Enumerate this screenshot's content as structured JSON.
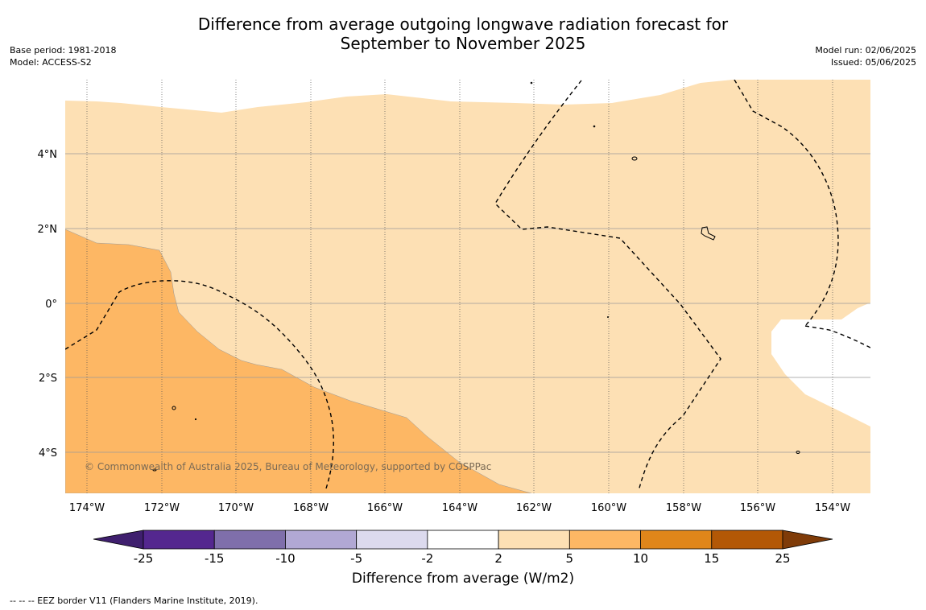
{
  "title": "Difference from average outgoing longwave radiation forecast for\nSeptember to November 2025",
  "base_period": "Base period: 1981-2018",
  "model": "Model: ACCESS-S2",
  "model_run": "Model run: 02/06/2025",
  "issued": "Issued: 05/06/2025",
  "copyright": "© Commonwealth of Australia 2025, Bureau of Meteorology, supported by COSPPac",
  "lat_labels": [
    "4°N",
    "2°N",
    "0°",
    "2°S",
    "4°S"
  ],
  "lon_labels": [
    "174°W",
    "172°W",
    "170°W",
    "168°W",
    "166°W",
    "164°W",
    "162°W",
    "160°W",
    "158°W",
    "156°W",
    "154°W"
  ],
  "colorbar": {
    "label": "Difference from average (W/m2)",
    "ticks": [
      "-25",
      "-15",
      "-10",
      "-5",
      "-2",
      "2",
      "5",
      "10",
      "15",
      "25"
    ],
    "colors": [
      "#3f1f6e",
      "#54278f",
      "#7f6fab",
      "#b1a8d4",
      "#dcdaee",
      "#ffffff",
      "#fde0b4",
      "#fdb764",
      "#e0861a",
      "#b35806",
      "#7f3b08"
    ]
  },
  "legend_note": "--  --  -- EEZ border V11 (Flanders Marine Institute, 2019)."
}
